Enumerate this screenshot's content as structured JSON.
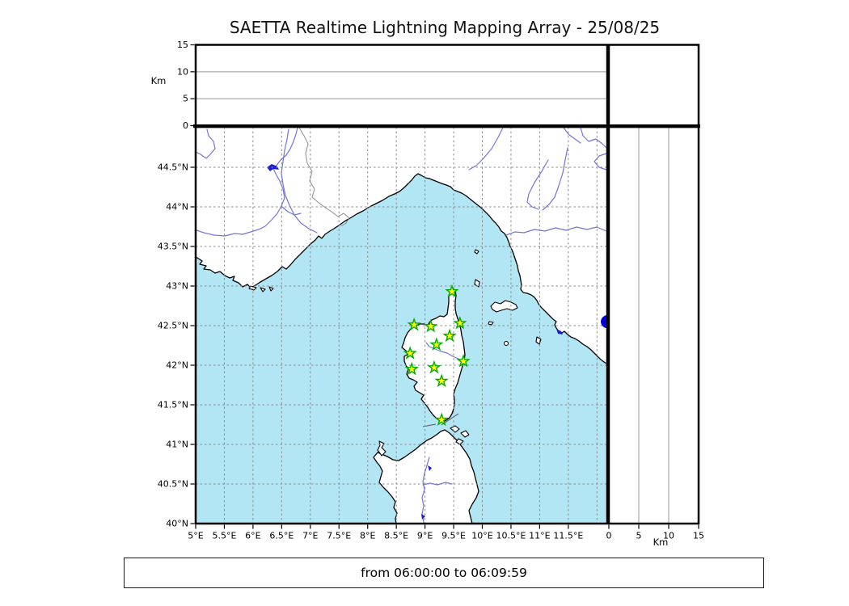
{
  "title": "SAETTA Realtime Lightning Mapping Array - 25/08/25",
  "footer": {
    "time_range": "from 06:00:00 to 06:09:59"
  },
  "axes": {
    "altitude": {
      "label": "Km",
      "tick_values": [
        0,
        5,
        10,
        15
      ],
      "tick_labels": [
        "0",
        "5",
        "10",
        "15"
      ],
      "grid_values": [
        5,
        10
      ],
      "range": [
        0,
        15
      ]
    },
    "longitude": {
      "tick_values": [
        5,
        5.5,
        6,
        6.5,
        7,
        7.5,
        8,
        8.5,
        9,
        9.5,
        10,
        10.5,
        11,
        11.5
      ],
      "tick_labels": [
        "5°E",
        "5.5°E",
        "6°E",
        "6.5°E",
        "7°E",
        "7.5°E",
        "8°E",
        "8.5°E",
        "9°E",
        "9.5°E",
        "10°E",
        "10.5°E",
        "11°E",
        "11.5°E"
      ],
      "grid_values": [
        5.5,
        6,
        6.5,
        7,
        7.5,
        8,
        8.5,
        9,
        9.5,
        10,
        10.5,
        11,
        11.5,
        12
      ],
      "range": [
        5,
        12.18
      ]
    },
    "latitude": {
      "tick_values": [
        40,
        40.5,
        41,
        41.5,
        42,
        42.5,
        43,
        43.5,
        44,
        44.5
      ],
      "tick_labels": [
        "40°N",
        "40.5°N",
        "41°N",
        "41.5°N",
        "42°N",
        "42.5°N",
        "43°N",
        "43.5°N",
        "44°N",
        "44.5°N"
      ],
      "grid_values": [
        40.5,
        41,
        41.5,
        42,
        42.5,
        43,
        43.5,
        44,
        44.5
      ],
      "range": [
        40,
        45.01
      ]
    }
  },
  "stations": [
    {
      "lon": 9.47,
      "lat": 42.93
    },
    {
      "lon": 8.81,
      "lat": 42.51
    },
    {
      "lon": 9.1,
      "lat": 42.49
    },
    {
      "lon": 9.61,
      "lat": 42.53
    },
    {
      "lon": 9.43,
      "lat": 42.37
    },
    {
      "lon": 9.2,
      "lat": 42.26
    },
    {
      "lon": 8.74,
      "lat": 42.15
    },
    {
      "lon": 9.67,
      "lat": 42.05
    },
    {
      "lon": 9.16,
      "lat": 41.97
    },
    {
      "lon": 8.77,
      "lat": 41.95
    },
    {
      "lon": 9.29,
      "lat": 41.8
    },
    {
      "lon": 9.29,
      "lat": 41.31
    }
  ],
  "events": [
    {
      "lon": 12.18,
      "lat": 42.55
    }
  ],
  "colors": {
    "sea": "#b3e6f4",
    "land": "#ffffff",
    "coast": "#000000",
    "river": "#7373de",
    "lake": "#1a1ecc",
    "political_border": "#8f8f8f",
    "grid": "#8c8c8c",
    "panel_grid": "#999999",
    "station_fill": "#ffff00",
    "station_edge": "#00ab00",
    "event_dot": "#0000dd"
  }
}
